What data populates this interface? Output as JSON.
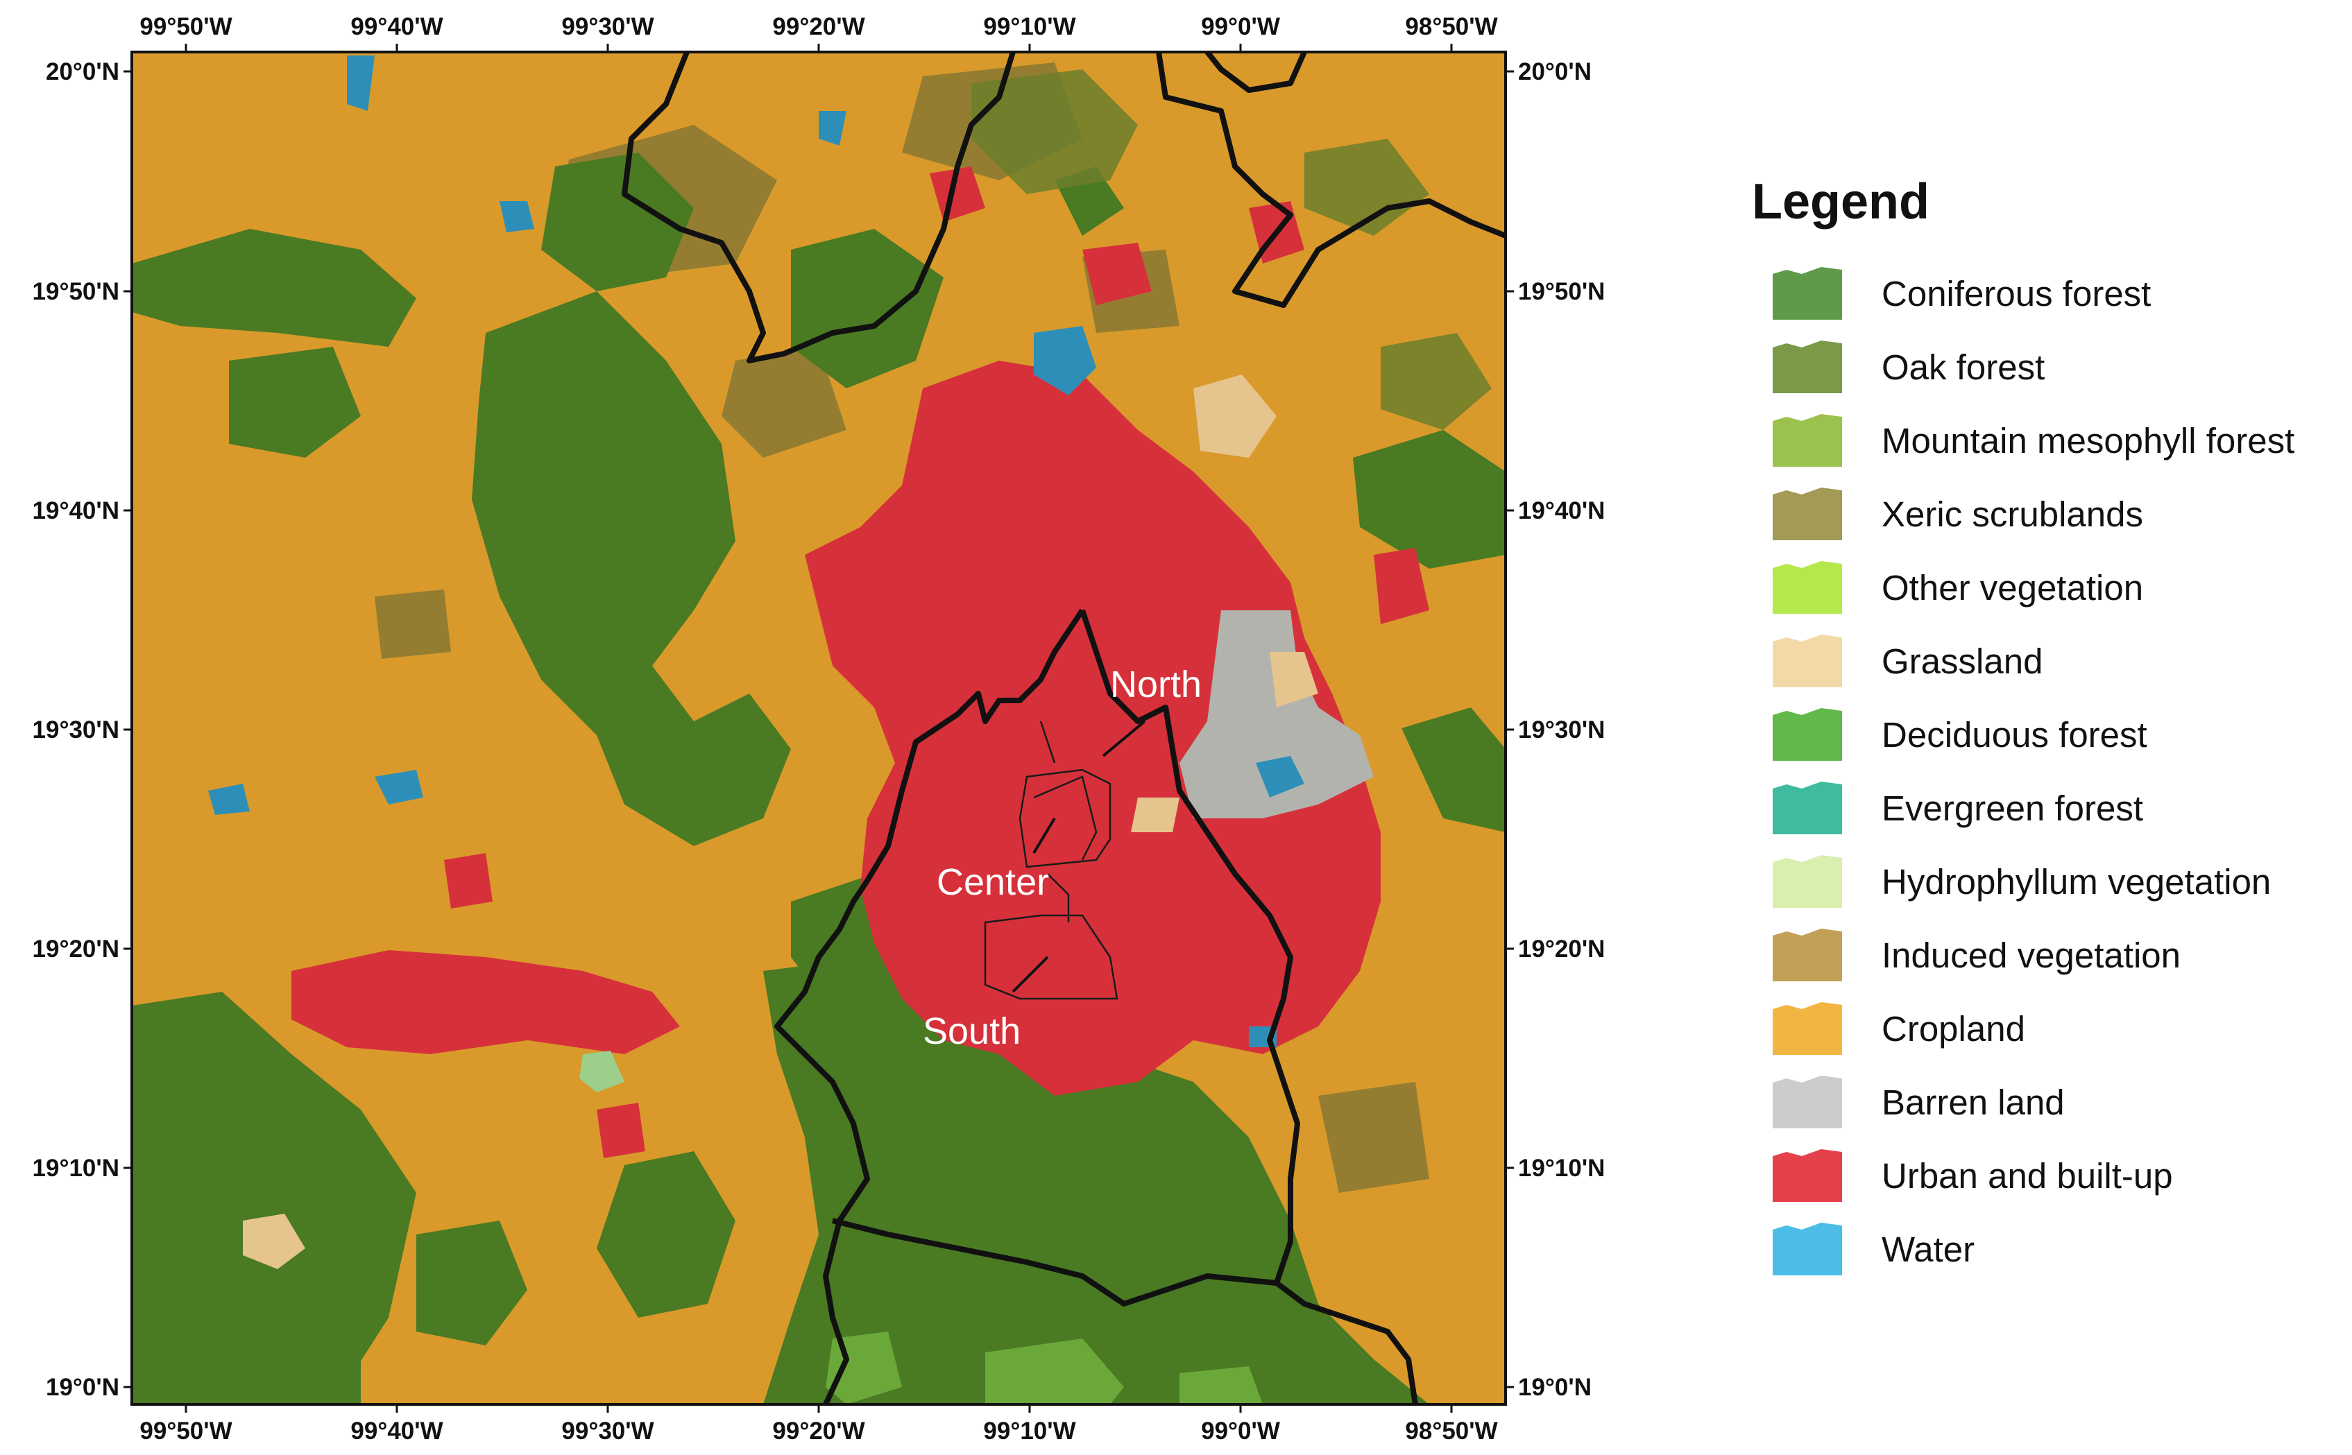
{
  "map": {
    "lon_ticks_top": [
      "99°50'W",
      "99°40'W",
      "99°30'W",
      "99°20'W",
      "99°10'W",
      "99°0'W",
      "98°50'W"
    ],
    "lon_ticks_bottom": [
      "99°50'W",
      "99°40'W",
      "99°30'W",
      "99°20'W",
      "99°10'W",
      "99°0'W",
      "98°50'W"
    ],
    "lat_ticks_left": [
      "20°0'N",
      "19°50'N",
      "19°40'N",
      "19°30'N",
      "19°20'N",
      "19°10'N",
      "19°0'N"
    ],
    "lat_ticks_right": [
      "20°0'N",
      "19°50'N",
      "19°40'N",
      "19°30'N",
      "19°20'N",
      "19°10'N",
      "19°0'N"
    ],
    "region_labels": {
      "north": "North",
      "center": "Center",
      "south": "South"
    }
  },
  "legend": {
    "title": "Legend",
    "items": [
      {
        "label": "Coniferous forest",
        "color": "#5e9a4a"
      },
      {
        "label": "Oak forest",
        "color": "#7a9a48"
      },
      {
        "label": "Mountain mesophyll forest",
        "color": "#9bc24d"
      },
      {
        "label": "Xeric scrublands",
        "color": "#a29a55"
      },
      {
        "label": "Other vegetation",
        "color": "#b5e84a"
      },
      {
        "label": "Grassland",
        "color": "#f4d9a8"
      },
      {
        "label": "Deciduous forest",
        "color": "#62b84b"
      },
      {
        "label": "Evergreen forest",
        "color": "#3fbba0"
      },
      {
        "label": "Hydrophyllum vegetation",
        "color": "#d8efb0"
      },
      {
        "label": "Induced vegetation",
        "color": "#c4a057"
      },
      {
        "label": "Cropland",
        "color": "#f2b544"
      },
      {
        "label": "Barren land",
        "color": "#cccccc"
      },
      {
        "label": "Urban and built-up",
        "color": "#e5414a"
      },
      {
        "label": "Water",
        "color": "#4bbde6"
      }
    ]
  },
  "palette": {
    "cropland": "#d99a2b",
    "forest_dark": "#4a7a22",
    "oak": "#7b7a2e",
    "xeric": "#8c7a32",
    "urban": "#d6313a",
    "barren": "#b3b3ad",
    "grass": "#e6c48e",
    "water": "#2d8fb8",
    "green_light": "#6aa83a",
    "boundary": "#111111"
  }
}
